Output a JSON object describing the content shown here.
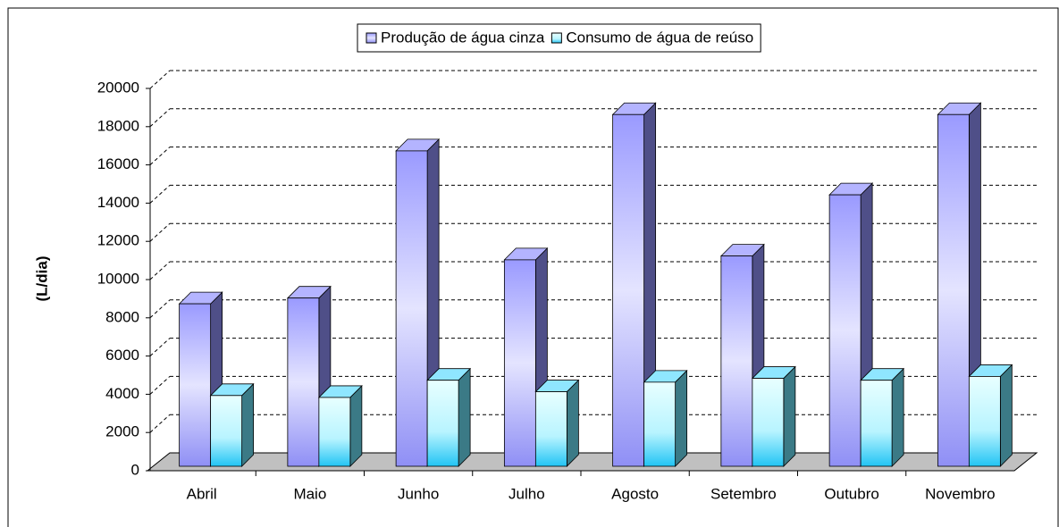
{
  "chart_data": {
    "type": "bar3d",
    "y_label": "(L/dia)",
    "categories": [
      "Abril",
      "Maio",
      "Junho",
      "Julho",
      "Agosto",
      "Setembro",
      "Outubro",
      "Novembro"
    ],
    "series": [
      {
        "name": "Produção de água cinza",
        "color": "#9999ff",
        "values": [
          8500,
          8800,
          16500,
          10800,
          18400,
          11000,
          14200,
          18400
        ]
      },
      {
        "name": "Consumo de água de reúso",
        "color": "#33ccff",
        "values": [
          3700,
          3600,
          4500,
          3900,
          4400,
          4600,
          4500,
          4700
        ]
      }
    ],
    "ylim": [
      0,
      20000
    ],
    "yticks": [
      0,
      2000,
      4000,
      6000,
      8000,
      10000,
      12000,
      14000,
      16000,
      18000,
      20000
    ],
    "grid": true,
    "legend": "top"
  }
}
